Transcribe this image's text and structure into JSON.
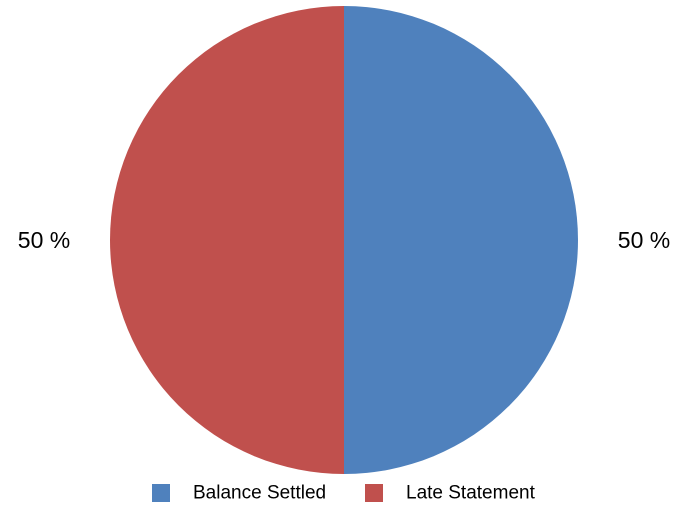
{
  "chart_data": {
    "type": "pie",
    "slices": [
      {
        "label": "Balance Settled",
        "value": 50,
        "data_label": "50 %",
        "color": "#4f81bd"
      },
      {
        "label": "Late Statement",
        "value": 50,
        "data_label": "50 %",
        "color": "#c0504d"
      }
    ],
    "legend": {
      "placement": "bottom",
      "entries": [
        "Balance Settled",
        "Late Statement"
      ]
    },
    "start_angle_deg": 0,
    "direction": "clockwise"
  }
}
